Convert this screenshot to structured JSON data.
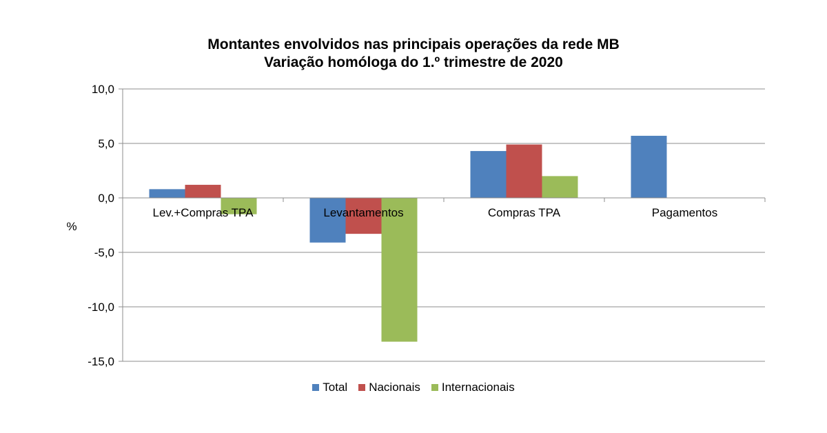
{
  "chart_data": {
    "type": "bar",
    "title": "Montantes envolvidos nas principais operações da rede MB",
    "subtitle": "Variação homóloga do 1.º trimestre de 2020",
    "ylabel": "%",
    "xlabel": "",
    "ylim": [
      -15,
      10
    ],
    "yticks": [
      10,
      5,
      0,
      -5,
      -10,
      -15
    ],
    "ytick_labels": [
      "10,0",
      "5,0",
      "0,0",
      "-5,0",
      "-10,0",
      "-15,0"
    ],
    "grid": true,
    "legend_position": "bottom",
    "categories": [
      "Lev.+Compras TPA",
      "Levantamentos",
      "Compras TPA",
      "Pagamentos"
    ],
    "series": [
      {
        "name": "Total",
        "color": "#4F81BD",
        "values": [
          0.8,
          -4.1,
          4.3,
          5.7
        ]
      },
      {
        "name": "Nacionais",
        "color": "#C0504D",
        "values": [
          1.2,
          -3.3,
          4.9,
          null
        ]
      },
      {
        "name": "Internacionais",
        "color": "#9BBB59",
        "values": [
          -1.5,
          -13.2,
          2.0,
          null
        ]
      }
    ]
  }
}
